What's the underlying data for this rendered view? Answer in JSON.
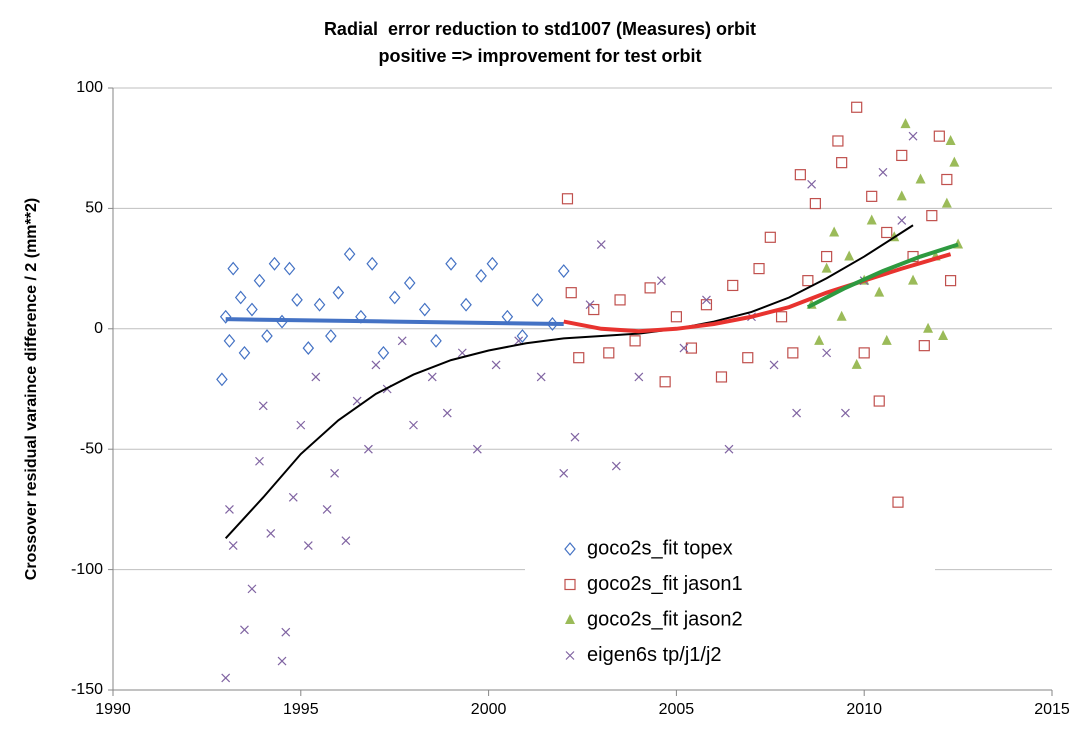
{
  "chart_data": {
    "type": "scatter",
    "title": "Radial  error reduction to std1007 (Measures) orbit",
    "subtitle": "positive => improvement for test orbit",
    "y_label": "Crossover residual varaince difference / 2 (mm**2)",
    "xlim": [
      1990,
      2015
    ],
    "xticks": [
      1990,
      1995,
      2000,
      2005,
      2010,
      2015
    ],
    "ylim": [
      -150,
      100
    ],
    "yticks": [
      -150,
      -100,
      -50,
      0,
      50,
      100
    ],
    "grid": true,
    "legend": "lower right",
    "series": [
      {
        "name": "goco2s_fit topex",
        "color": "#4472c4",
        "marker": "diamond",
        "x": [
          1992.9,
          1993.0,
          1993.1,
          1993.2,
          1993.4,
          1993.5,
          1993.7,
          1993.9,
          1994.1,
          1994.3,
          1994.5,
          1994.7,
          1994.9,
          1995.2,
          1995.5,
          1995.8,
          1996.0,
          1996.3,
          1996.6,
          1996.9,
          1997.2,
          1997.5,
          1997.9,
          1998.3,
          1998.6,
          1999.0,
          1999.4,
          1999.8,
          2000.1,
          2000.5,
          2000.9,
          2001.3,
          2001.7,
          2002.0
        ],
        "values": [
          -21,
          5,
          -5,
          25,
          13,
          -10,
          8,
          20,
          -3,
          27,
          3,
          25,
          12,
          -8,
          10,
          -3,
          15,
          31,
          5,
          27,
          -10,
          13,
          19,
          8,
          -5,
          27,
          10,
          22,
          27,
          5,
          -3,
          12,
          2,
          24
        ]
      },
      {
        "name": "goco2s_fit jason1",
        "color": "#c0504d",
        "marker": "square",
        "x": [
          2002.1,
          2002.2,
          2002.4,
          2002.8,
          2003.2,
          2003.5,
          2003.9,
          2004.3,
          2004.7,
          2005.0,
          2005.4,
          2005.8,
          2006.2,
          2006.5,
          2006.9,
          2007.2,
          2007.5,
          2007.8,
          2008.1,
          2008.3,
          2008.5,
          2008.7,
          2009.0,
          2009.3,
          2009.4,
          2009.8,
          2010.0,
          2010.2,
          2010.4,
          2010.6,
          2010.9,
          2011.0,
          2011.3,
          2011.6,
          2011.8,
          2012.0,
          2012.2,
          2012.3
        ],
        "values": [
          54,
          15,
          -12,
          8,
          -10,
          12,
          -5,
          17,
          -22,
          5,
          -8,
          10,
          -20,
          18,
          -12,
          25,
          38,
          5,
          -10,
          64,
          20,
          52,
          30,
          78,
          69,
          92,
          -10,
          55,
          -30,
          40,
          -72,
          72,
          30,
          -7,
          47,
          80,
          62,
          20
        ]
      },
      {
        "name": "goco2s_fit jason2",
        "color": "#9bbb59",
        "marker": "triangle",
        "x": [
          2008.6,
          2008.8,
          2009.0,
          2009.2,
          2009.4,
          2009.6,
          2009.8,
          2010.0,
          2010.2,
          2010.4,
          2010.6,
          2010.8,
          2011.0,
          2011.1,
          2011.3,
          2011.5,
          2011.7,
          2011.9,
          2012.1,
          2012.2,
          2012.3,
          2012.4,
          2012.5
        ],
        "values": [
          10,
          -5,
          25,
          40,
          5,
          30,
          -15,
          20,
          45,
          15,
          -5,
          38,
          55,
          85,
          20,
          62,
          0,
          30,
          -3,
          52,
          78,
          69,
          35
        ]
      },
      {
        "name": "eigen6s tp/j1/j2",
        "color": "#8064a2",
        "marker": "x",
        "x": [
          1993.0,
          1993.1,
          1993.2,
          1993.5,
          1993.7,
          1993.9,
          1994.0,
          1994.2,
          1994.5,
          1994.6,
          1994.8,
          1995.0,
          1995.2,
          1995.4,
          1995.7,
          1995.9,
          1996.2,
          1996.5,
          1996.8,
          1997.0,
          1997.3,
          1997.7,
          1998.0,
          1998.5,
          1998.9,
          1999.3,
          1999.7,
          2000.2,
          2000.8,
          2001.4,
          2002.0,
          2002.3,
          2002.7,
          2003.0,
          2003.4,
          2004.0,
          2004.6,
          2005.2,
          2005.8,
          2006.4,
          2007.0,
          2007.6,
          2008.2,
          2008.6,
          2009.0,
          2009.5,
          2010.0,
          2010.5,
          2011.0,
          2011.3
        ],
        "values": [
          -145,
          -75,
          -90,
          -125,
          -108,
          -55,
          -32,
          -85,
          -138,
          -126,
          -70,
          -40,
          -90,
          -20,
          -75,
          -60,
          -88,
          -30,
          -50,
          -15,
          -25,
          -5,
          -40,
          -20,
          -35,
          -10,
          -50,
          -15,
          -5,
          -20,
          -60,
          -45,
          10,
          35,
          -57,
          -20,
          20,
          -8,
          12,
          -50,
          5,
          -15,
          -35,
          60,
          -10,
          -35,
          20,
          65,
          45,
          80
        ]
      }
    ],
    "trendlines": [
      {
        "color": "#4472c4",
        "x": [
          1993,
          1997.5,
          2002
        ],
        "values": [
          4,
          3,
          2
        ]
      },
      {
        "color": "#000000",
        "x": [
          1993,
          1994,
          1995,
          1996,
          1997,
          1998,
          1999,
          2000,
          2001,
          2002,
          2003,
          2004,
          2005,
          2006,
          2007,
          2008,
          2009,
          2010,
          2011,
          2011.3
        ],
        "values": [
          -87,
          -70,
          -52,
          -38,
          -27,
          -19,
          -13,
          -9,
          -6,
          -4,
          -3,
          -2,
          0,
          3,
          7,
          13,
          21,
          30,
          40,
          43
        ]
      },
      {
        "color": "#e8332f",
        "x": [
          2002,
          2003,
          2004,
          2005,
          2006,
          2007,
          2008,
          2009,
          2010,
          2011,
          2012.3
        ],
        "values": [
          3,
          0,
          -1,
          0,
          2,
          5,
          9,
          15,
          20,
          25,
          31
        ]
      },
      {
        "color": "#2e9a40",
        "x": [
          2008.5,
          2009.5,
          2010.5,
          2011.5,
          2012.5
        ],
        "values": [
          9,
          17,
          24,
          30,
          35
        ]
      }
    ]
  }
}
